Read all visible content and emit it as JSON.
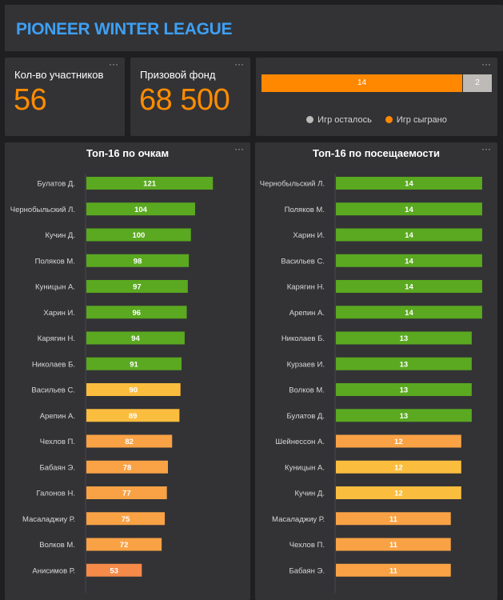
{
  "header": {
    "title": "PIONEER WINTER LEAGUE",
    "menu": "···"
  },
  "kpis": [
    {
      "label": "Кол-во участников",
      "value": "56",
      "menu": "···"
    },
    {
      "label": "Призовой фонд",
      "value": "68 500",
      "menu": "···"
    }
  ],
  "games": {
    "menu": "···",
    "played": 14,
    "remaining": 2,
    "played_label": "14",
    "remaining_label": "2",
    "legend_remaining": "Игр осталось",
    "legend_played": "Игр сыграно",
    "color_played": "#ff8800",
    "color_remaining": "#bdbab7"
  },
  "colors": {
    "green": "#5aa920",
    "yellow": "#fbbd3e",
    "orange": "#f9a245",
    "deep_orange": "#f58a49"
  },
  "chart_data": [
    {
      "type": "bar",
      "orientation": "horizontal",
      "title": "Топ-16 по очкам",
      "menu": "···",
      "max": 130,
      "categories": [
        "Булатов Д.",
        "Чернобыльский Л.",
        "Кучин Д.",
        "Поляков М.",
        "Куницын А.",
        "Харин И.",
        "Карягин Н.",
        "Николаев Б.",
        "Васильев С.",
        "Арепин А.",
        "Чехлов П.",
        "Бабаян Э.",
        "Галонов Н.",
        "Масаладжиу Р.",
        "Волков М.",
        "Анисимов Р."
      ],
      "values": [
        121,
        104,
        100,
        98,
        97,
        96,
        94,
        91,
        90,
        89,
        82,
        78,
        77,
        75,
        72,
        53
      ],
      "colors": [
        "green",
        "green",
        "green",
        "green",
        "green",
        "green",
        "green",
        "green",
        "yellow",
        "yellow",
        "orange",
        "orange",
        "orange",
        "orange",
        "orange",
        "deep_orange"
      ]
    },
    {
      "type": "bar",
      "orientation": "horizontal",
      "title": "Топ-16 по посещаемости",
      "menu": "···",
      "max": 15,
      "categories": [
        "Чернобыльский Л.",
        "Поляков М.",
        "Харин И.",
        "Васильев С.",
        "Карягин Н.",
        "Арепин А.",
        "Николаев Б.",
        "Курзаев И.",
        "Волков М.",
        "Булатов Д.",
        "Шейнессон А.",
        "Куницын А.",
        "Кучин Д.",
        "Масаладжиу Р.",
        "Чехлов П.",
        "Бабаян Э."
      ],
      "values": [
        14,
        14,
        14,
        14,
        14,
        14,
        13,
        13,
        13,
        13,
        12,
        12,
        12,
        11,
        11,
        11
      ],
      "colors": [
        "green",
        "green",
        "green",
        "green",
        "green",
        "green",
        "green",
        "green",
        "green",
        "green",
        "orange",
        "yellow",
        "yellow",
        "orange",
        "orange",
        "orange"
      ]
    }
  ]
}
